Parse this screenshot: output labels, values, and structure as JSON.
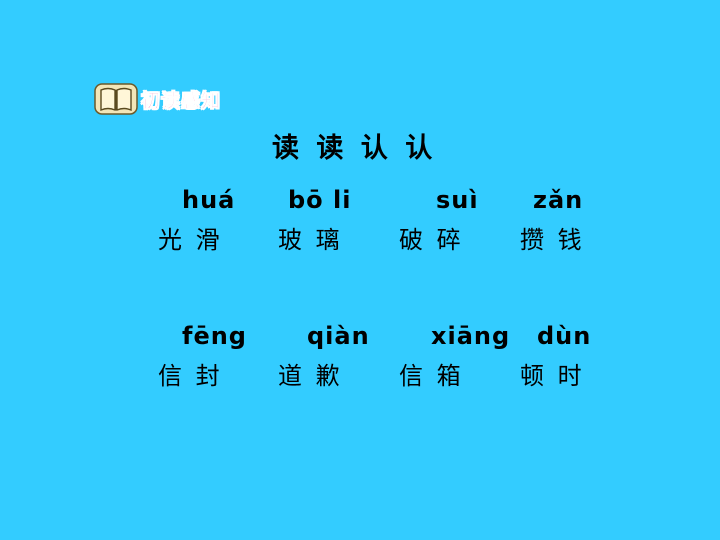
{
  "section": {
    "icon": "open-book-icon",
    "label": "初读感知"
  },
  "heading": "读 读 认 认",
  "rows": [
    {
      "items": [
        {
          "pinyin": "huá",
          "word": "光 滑"
        },
        {
          "pinyin": "bō li",
          "word": "玻 璃"
        },
        {
          "pinyin": "suì",
          "word": "破 碎"
        },
        {
          "pinyin": "zǎn",
          "word": "攒 钱"
        }
      ]
    },
    {
      "items": [
        {
          "pinyin": "fēng",
          "word": "信 封"
        },
        {
          "pinyin": "qiàn",
          "word": "道 歉"
        },
        {
          "pinyin": "xiāng",
          "word": "信 箱"
        },
        {
          "pinyin": "dùn",
          "word": "顿 时"
        }
      ]
    }
  ],
  "colors": {
    "background": "#33ccff",
    "label": "#e6338c"
  }
}
